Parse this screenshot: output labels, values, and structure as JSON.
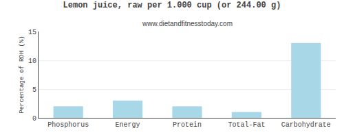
{
  "chart_data": {
    "type": "bar",
    "title": "Lemon juice, raw per 1.000 cup (or 244.00 g)",
    "subtitle": "www.dietandfitnesstoday.com",
    "ylabel": "Percentage of RDH (%)",
    "categories": [
      "Phosphorus",
      "Energy",
      "Protein",
      "Total-Fat",
      "Carbohydrate"
    ],
    "values": [
      2.0,
      3.0,
      2.0,
      1.0,
      13.0
    ],
    "color": "#a8d8e8",
    "ylim": [
      0,
      15
    ],
    "yticks": [
      0,
      5,
      10,
      15
    ],
    "grid": true
  }
}
